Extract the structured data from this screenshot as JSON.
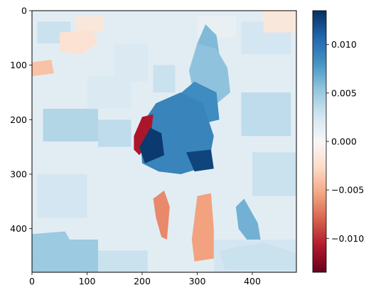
{
  "chart_data": {
    "type": "heatmap",
    "title": "",
    "xlabel": "",
    "ylabel": "",
    "xlim": [
      0,
      480
    ],
    "ylim": [
      480,
      0
    ],
    "x_ticks": [
      0,
      100,
      200,
      300,
      400
    ],
    "y_ticks": [
      0,
      100,
      200,
      300,
      400
    ],
    "colormap": "RdBu",
    "color_range": [
      -0.0135,
      0.0135
    ],
    "colorbar_ticks": [
      0.01,
      0.005,
      0.0,
      -0.005,
      -0.01
    ],
    "colorbar_tick_labels": [
      "0.010",
      "0.005",
      "0.000",
      "−0.005",
      "−0.010"
    ],
    "x_tick_labels": [
      "0",
      "100",
      "200",
      "300",
      "400"
    ],
    "y_tick_labels": [
      "0",
      "100",
      "200",
      "300",
      "400"
    ],
    "regions": [
      {
        "label": "background",
        "value": 0.0015
      },
      {
        "label": "upper-left-patch",
        "value": -0.002
      },
      {
        "label": "left-edge-patch",
        "value": -0.004
      },
      {
        "label": "dog-head",
        "value": 0.0055
      },
      {
        "label": "dog-ear",
        "value": 0.006
      },
      {
        "label": "dog-neck",
        "value": 0.0085
      },
      {
        "label": "dog-body",
        "value": 0.009
      },
      {
        "label": "dog-chest-dark",
        "value": 0.013
      },
      {
        "label": "dog-belly-dark",
        "value": 0.0125
      },
      {
        "label": "dog-back-red",
        "value": -0.011
      },
      {
        "label": "front-leg-left",
        "value": -0.0065
      },
      {
        "label": "front-leg-right",
        "value": -0.0055
      },
      {
        "label": "back-leg",
        "value": 0.0065
      },
      {
        "label": "ground-left",
        "value": 0.005
      },
      {
        "label": "ground-right",
        "value": 0.003
      }
    ]
  }
}
